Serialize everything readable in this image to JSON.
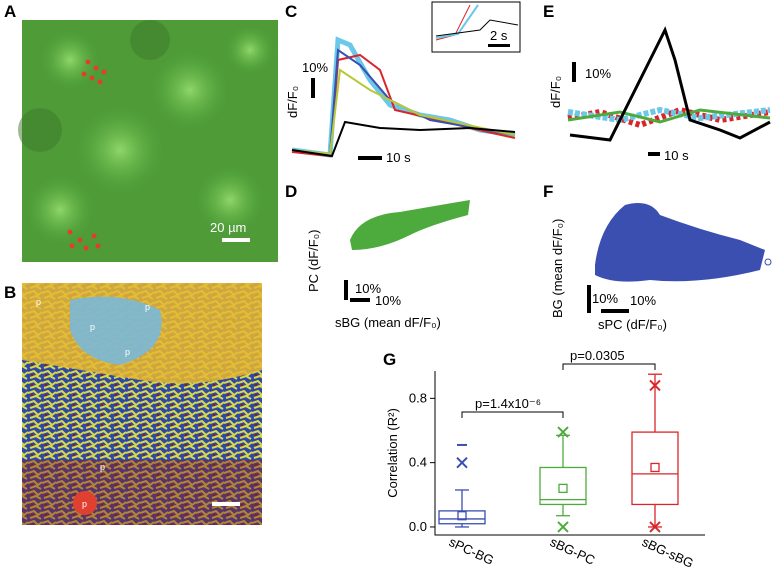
{
  "panels": {
    "A": {
      "letter": "A",
      "scale_bar": "20 µm"
    },
    "B": {
      "letter": "B",
      "markers": [
        "p",
        "p",
        "p",
        "p",
        "p",
        "p"
      ]
    },
    "C": {
      "letter": "C",
      "y_label": "dF/F₀",
      "y_scale": "10%",
      "x_scale": "10 s",
      "inset_scale": "2 s"
    },
    "D": {
      "letter": "D",
      "y_label": "PC (dF/F₀)",
      "x_label": "sBG (mean dF/F₀)",
      "y_scale": "10%",
      "x_scale": "10%"
    },
    "E": {
      "letter": "E",
      "y_label": "dF/F₀",
      "y_scale": "10%",
      "x_scale": "10 s"
    },
    "F": {
      "letter": "F",
      "y_label": "BG (mean dF/F₀)",
      "x_label": "sPC (dF/F₀)",
      "y_scale": "10%",
      "x_scale": "10%"
    },
    "G": {
      "letter": "G"
    }
  },
  "chart_data": {
    "type": "box",
    "y_label": "Correlation (R²)",
    "categories": [
      "sPC-BG",
      "sBG-PC",
      "sBG-sBG"
    ],
    "ylim": [
      -0.05,
      0.97
    ],
    "yticks": [
      {
        "value": 0,
        "label": "0.0"
      },
      0.4,
      0.8
    ],
    "series": [
      {
        "color": "#3a4fb0",
        "whisker_low": 0.0,
        "q1": 0.02,
        "median": 0.05,
        "q3": 0.1,
        "whisker_high": 0.23,
        "mean": 0.07,
        "outliers": [
          0.4
        ],
        "max": 0.51
      },
      {
        "color": "#4daa3c",
        "whisker_low": 0.07,
        "q1": 0.14,
        "median": 0.17,
        "q3": 0.37,
        "whisker_high": 0.57,
        "mean": 0.24,
        "outliers": [
          0.59,
          0.0
        ]
      },
      {
        "color": "#d9262a",
        "whisker_low": 0.0,
        "q1": 0.14,
        "median": 0.33,
        "q3": 0.59,
        "whisker_high": 0.95,
        "mean": 0.37,
        "outliers": [
          0.88,
          0.0
        ]
      }
    ],
    "annotations": [
      "p=1.4x10⁻⁶",
      "p=0.0305"
    ]
  }
}
